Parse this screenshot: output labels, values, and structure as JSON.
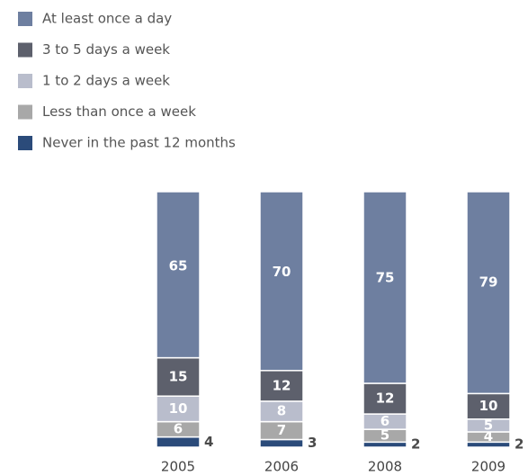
{
  "chart_data": {
    "type": "stacked-bar",
    "categories": [
      "2005",
      "2006",
      "2008",
      "2009"
    ],
    "series": [
      {
        "name": "Never in the past 12 months",
        "color": "#2b4b7a",
        "values": [
          4,
          3,
          2,
          2
        ]
      },
      {
        "name": "Less than once a week",
        "color": "#a8a8a8",
        "values": [
          6,
          7,
          5,
          4
        ]
      },
      {
        "name": "1 to 2 days a week",
        "color": "#b9bdcc",
        "values": [
          10,
          8,
          6,
          5
        ]
      },
      {
        "name": "3 to 5 days a week",
        "color": "#5d606c",
        "values": [
          15,
          12,
          12,
          10
        ]
      },
      {
        "name": "At least once a day",
        "color": "#6e7fa0",
        "values": [
          65,
          70,
          75,
          79
        ]
      }
    ]
  }
}
